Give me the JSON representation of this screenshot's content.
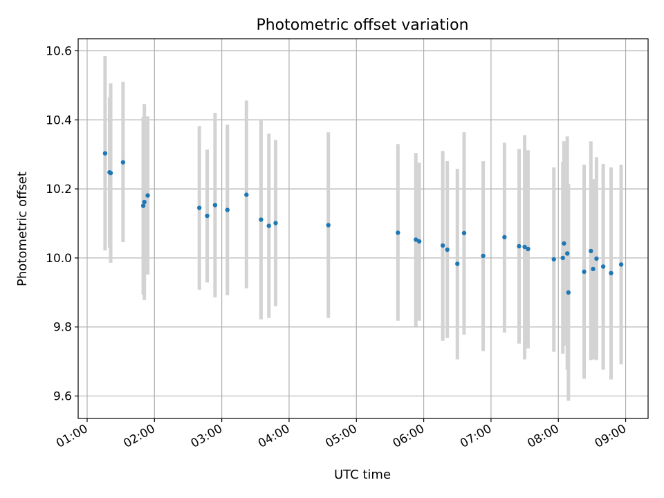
{
  "chart_data": {
    "type": "scatter",
    "title": "Photometric offset variation",
    "xlabel": "UTC time",
    "ylabel": "Photometric offset",
    "grid": true,
    "xlim": [
      "00:52",
      "09:20"
    ],
    "ylim": [
      9.535,
      10.635
    ],
    "x_ticks": [
      "01:00",
      "02:00",
      "03:00",
      "04:00",
      "05:00",
      "06:00",
      "07:00",
      "08:00",
      "09:00"
    ],
    "y_ticks": [
      "9.6",
      "9.8",
      "10.0",
      "10.2",
      "10.4",
      "10.6"
    ],
    "colors": {
      "points": "#1f77b4",
      "errorbars": "#d3d3d3",
      "grid": "#b0b0b0"
    },
    "series": [
      {
        "points": [
          {
            "x": "01:16",
            "y": 10.303,
            "y_low": 10.022,
            "y_high": 10.585
          },
          {
            "x": "01:20",
            "y": 10.248,
            "y_low": 10.03,
            "y_high": 10.465
          },
          {
            "x": "01:21",
            "y": 10.246,
            "y_low": 9.986,
            "y_high": 10.506
          },
          {
            "x": "01:32",
            "y": 10.277,
            "y_low": 10.046,
            "y_high": 10.51
          },
          {
            "x": "01:50",
            "y": 10.151,
            "y_low": 9.894,
            "y_high": 10.408
          },
          {
            "x": "01:51",
            "y": 10.162,
            "y_low": 9.878,
            "y_high": 10.446
          },
          {
            "x": "01:54",
            "y": 10.181,
            "y_low": 9.952,
            "y_high": 10.41
          },
          {
            "x": "02:40",
            "y": 10.145,
            "y_low": 9.908,
            "y_high": 10.382
          },
          {
            "x": "02:47",
            "y": 10.122,
            "y_low": 9.929,
            "y_high": 10.314
          },
          {
            "x": "02:54",
            "y": 10.153,
            "y_low": 9.886,
            "y_high": 10.42
          },
          {
            "x": "03:05",
            "y": 10.139,
            "y_low": 9.892,
            "y_high": 10.386
          },
          {
            "x": "03:22",
            "y": 10.183,
            "y_low": 9.912,
            "y_high": 10.456
          },
          {
            "x": "03:35",
            "y": 10.111,
            "y_low": 9.822,
            "y_high": 10.402
          },
          {
            "x": "03:42",
            "y": 10.093,
            "y_low": 9.826,
            "y_high": 10.36
          },
          {
            "x": "03:48",
            "y": 10.101,
            "y_low": 9.86,
            "y_high": 10.342
          },
          {
            "x": "04:35",
            "y": 10.095,
            "y_low": 9.826,
            "y_high": 10.364
          },
          {
            "x": "05:37",
            "y": 10.073,
            "y_low": 9.818,
            "y_high": 10.33
          },
          {
            "x": "05:53",
            "y": 10.053,
            "y_low": 9.802,
            "y_high": 10.304
          },
          {
            "x": "05:56",
            "y": 10.048,
            "y_low": 9.818,
            "y_high": 10.276
          },
          {
            "x": "06:17",
            "y": 10.036,
            "y_low": 9.76,
            "y_high": 10.31
          },
          {
            "x": "06:21",
            "y": 10.024,
            "y_low": 9.768,
            "y_high": 10.28
          },
          {
            "x": "06:30",
            "y": 9.983,
            "y_low": 9.706,
            "y_high": 10.258
          },
          {
            "x": "06:36",
            "y": 10.072,
            "y_low": 9.778,
            "y_high": 10.364
          },
          {
            "x": "06:53",
            "y": 10.006,
            "y_low": 9.73,
            "y_high": 10.28
          },
          {
            "x": "07:12",
            "y": 10.06,
            "y_low": 9.784,
            "y_high": 10.334
          },
          {
            "x": "07:25",
            "y": 10.034,
            "y_low": 9.752,
            "y_high": 10.316
          },
          {
            "x": "07:30",
            "y": 10.032,
            "y_low": 9.706,
            "y_high": 10.356
          },
          {
            "x": "07:33",
            "y": 10.026,
            "y_low": 9.738,
            "y_high": 10.312
          },
          {
            "x": "07:56",
            "y": 9.996,
            "y_low": 9.728,
            "y_high": 10.262
          },
          {
            "x": "08:04",
            "y": 10.0,
            "y_low": 9.722,
            "y_high": 10.278
          },
          {
            "x": "08:05",
            "y": 10.042,
            "y_low": 9.746,
            "y_high": 10.338
          },
          {
            "x": "08:08",
            "y": 10.013,
            "y_low": 9.676,
            "y_high": 10.352
          },
          {
            "x": "08:09",
            "y": 9.9,
            "y_low": 9.586,
            "y_high": 10.214
          },
          {
            "x": "08:23",
            "y": 9.96,
            "y_low": 9.65,
            "y_high": 10.27
          },
          {
            "x": "08:29",
            "y": 10.02,
            "y_low": 9.704,
            "y_high": 10.338
          },
          {
            "x": "08:31",
            "y": 9.968,
            "y_low": 9.706,
            "y_high": 10.228
          },
          {
            "x": "08:34",
            "y": 9.998,
            "y_low": 9.704,
            "y_high": 10.292
          },
          {
            "x": "08:40",
            "y": 9.975,
            "y_low": 9.676,
            "y_high": 10.272
          },
          {
            "x": "08:47",
            "y": 9.956,
            "y_low": 9.648,
            "y_high": 10.262
          },
          {
            "x": "08:56",
            "y": 9.981,
            "y_low": 9.692,
            "y_high": 10.27
          }
        ]
      }
    ]
  }
}
